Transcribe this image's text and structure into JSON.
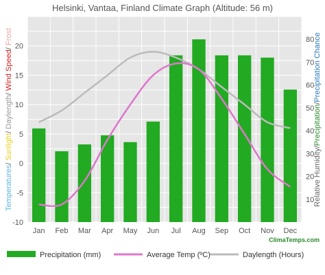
{
  "chart_data": {
    "type": "bar+line",
    "title": "Helsinki, Vantaa, Finland Climate Graph (Altitude: 56 m)",
    "credit": "ClimaTemps.com",
    "categories": [
      "Jan",
      "Feb",
      "Mar",
      "Apr",
      "May",
      "Jun",
      "Jul",
      "Aug",
      "Sep",
      "Oct",
      "Nov",
      "Dec"
    ],
    "left_axis": {
      "label_parts": [
        {
          "text": "Temperatures",
          "color": "#5ab4e0"
        },
        {
          "text": "/ ",
          "color": "#555555"
        },
        {
          "text": "Sunlight",
          "color": "#e8d020"
        },
        {
          "text": "/ ",
          "color": "#555555"
        },
        {
          "text": "Daylength",
          "color": "#999999"
        },
        {
          "text": "/ ",
          "color": "#555555"
        },
        {
          "text": "Wind Speed",
          "color": "#d02020"
        },
        {
          "text": "/ ",
          "color": "#555555"
        },
        {
          "text": "Frost",
          "color": "#f0a0a0"
        }
      ],
      "ylim": [
        -10,
        25
      ],
      "ticks": [
        "-10",
        "-5",
        "0",
        "5",
        "10",
        "15",
        "20"
      ],
      "tick_values": [
        -10,
        -5,
        0,
        5,
        10,
        15,
        20
      ]
    },
    "right_axis": {
      "label_parts": [
        {
          "text": "Relative Humidity",
          "color": "#666666"
        },
        {
          "text": "/",
          "color": "#555555"
        },
        {
          "text": "Precipitation",
          "color": "#2a8a2a"
        },
        {
          "text": "/",
          "color": "#555555"
        },
        {
          "text": "Precipitation Chance",
          "color": "#2a7ab8"
        }
      ],
      "ylim": [
        0,
        90
      ],
      "ticks": [
        "10",
        "20",
        "30",
        "40",
        "50",
        "60",
        "70",
        "80"
      ],
      "tick_values": [
        10,
        20,
        30,
        40,
        50,
        60,
        70,
        80
      ]
    },
    "series": [
      {
        "name": "Precipitation (mm)",
        "kind": "bar",
        "axis": "right",
        "color": "#22aa22",
        "values": [
          41,
          31,
          34,
          38,
          35,
          44,
          73,
          80,
          73,
          73,
          72,
          58
        ]
      },
      {
        "name": "Average Temp (ºC)",
        "kind": "line",
        "axis": "left",
        "color": "#dd77cc",
        "values": [
          -7,
          -7,
          -3,
          4,
          10,
          15,
          17,
          16,
          11,
          5,
          -1,
          -4
        ]
      },
      {
        "name": "Daylength (Hours)",
        "kind": "line",
        "axis": "left",
        "color": "#bbbbbb",
        "values": [
          7,
          9,
          12,
          15,
          18,
          19,
          18,
          16,
          13,
          10,
          7,
          6
        ]
      }
    ],
    "grid": true,
    "legend_position": "bottom"
  }
}
